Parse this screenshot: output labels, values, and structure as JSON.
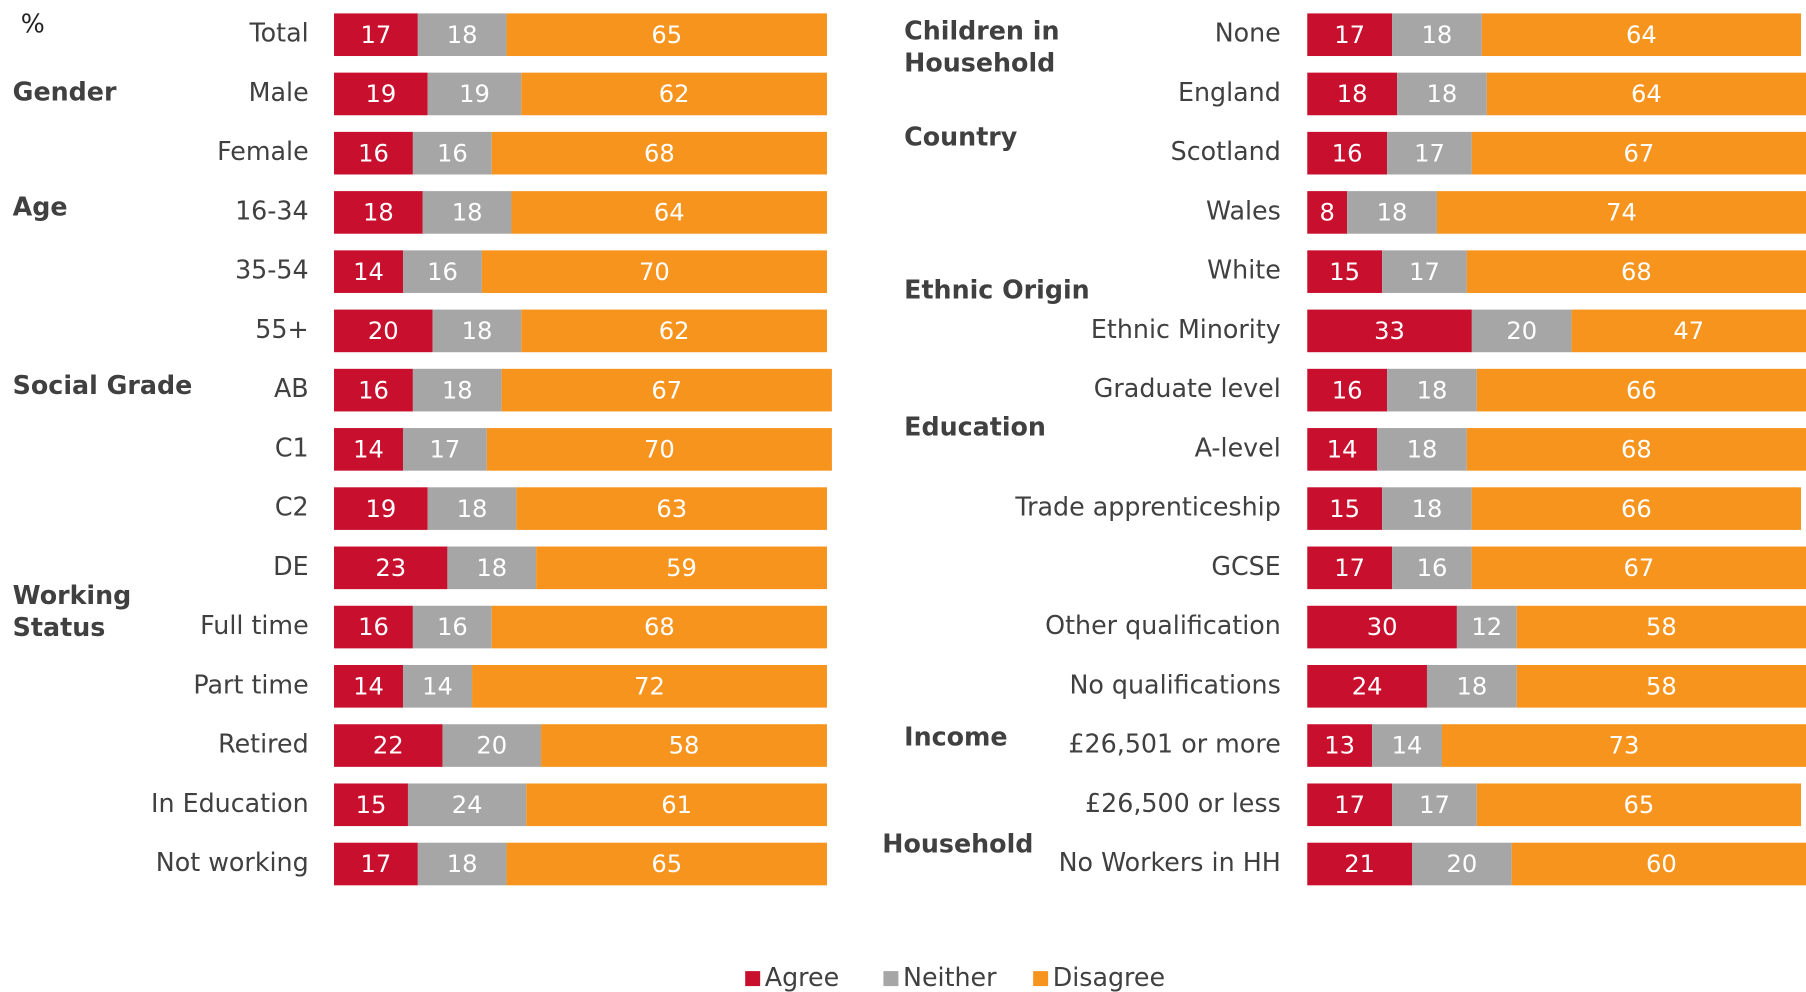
{
  "chart_data": [
    {
      "type": "bar",
      "orientation": "horizontal",
      "stacked": true,
      "unit": "%",
      "categories": [
        "Total",
        "Male",
        "Female",
        "16-34",
        "35-54",
        "55+",
        "AB",
        "C1",
        "C2",
        "DE",
        "Full time",
        "Part time",
        "Retired",
        "In Education",
        "Not working"
      ],
      "groups": [
        {
          "label": [
            "Gender"
          ]
        },
        {
          "label": [
            "Age"
          ]
        },
        {
          "label": [
            "Social Grade"
          ]
        },
        {
          "label": [
            "Working",
            "Status"
          ]
        }
      ],
      "series": [
        {
          "name": "Agree",
          "color": "#c8102e",
          "values": [
            17,
            19,
            16,
            18,
            14,
            20,
            16,
            14,
            19,
            23,
            16,
            14,
            22,
            15,
            17
          ]
        },
        {
          "name": "Neither",
          "color": "#a6a6a6",
          "values": [
            18,
            19,
            16,
            18,
            16,
            18,
            18,
            17,
            18,
            18,
            16,
            14,
            20,
            24,
            18
          ]
        },
        {
          "name": "Disagree",
          "color": "#f7941d",
          "values": [
            65,
            62,
            68,
            64,
            70,
            62,
            67,
            70,
            63,
            59,
            68,
            72,
            58,
            61,
            65
          ]
        }
      ]
    },
    {
      "type": "bar",
      "orientation": "horizontal",
      "stacked": true,
      "categories": [
        "None",
        "England",
        "Scotland",
        "Wales",
        "White",
        "Ethnic Minority",
        "Graduate level",
        "A-level",
        "Trade apprenticeship",
        "GCSE",
        "Other qualification",
        "No qualifications",
        "£26,501 or more",
        "£26,500 or less",
        "No Workers in HH"
      ],
      "groups": [
        {
          "label": [
            "Children in",
            "Household"
          ]
        },
        {
          "label": [
            "Country"
          ]
        },
        {
          "label": [
            "Ethnic Origin"
          ]
        },
        {
          "label": [
            "Education"
          ]
        },
        {
          "label": [
            "Income"
          ]
        },
        {
          "label": [
            "Household"
          ]
        }
      ],
      "series": [
        {
          "name": "Agree",
          "color": "#c8102e",
          "values": [
            17,
            18,
            16,
            8,
            15,
            33,
            16,
            14,
            15,
            17,
            30,
            24,
            13,
            17,
            21
          ]
        },
        {
          "name": "Neither",
          "color": "#a6a6a6",
          "values": [
            18,
            18,
            17,
            18,
            17,
            20,
            18,
            18,
            18,
            16,
            12,
            18,
            14,
            17,
            20
          ]
        },
        {
          "name": "Disagree",
          "color": "#f7941d",
          "values": [
            64,
            64,
            67,
            74,
            68,
            47,
            66,
            68,
            66,
            67,
            58,
            58,
            73,
            65,
            60
          ]
        }
      ]
    }
  ]
}
